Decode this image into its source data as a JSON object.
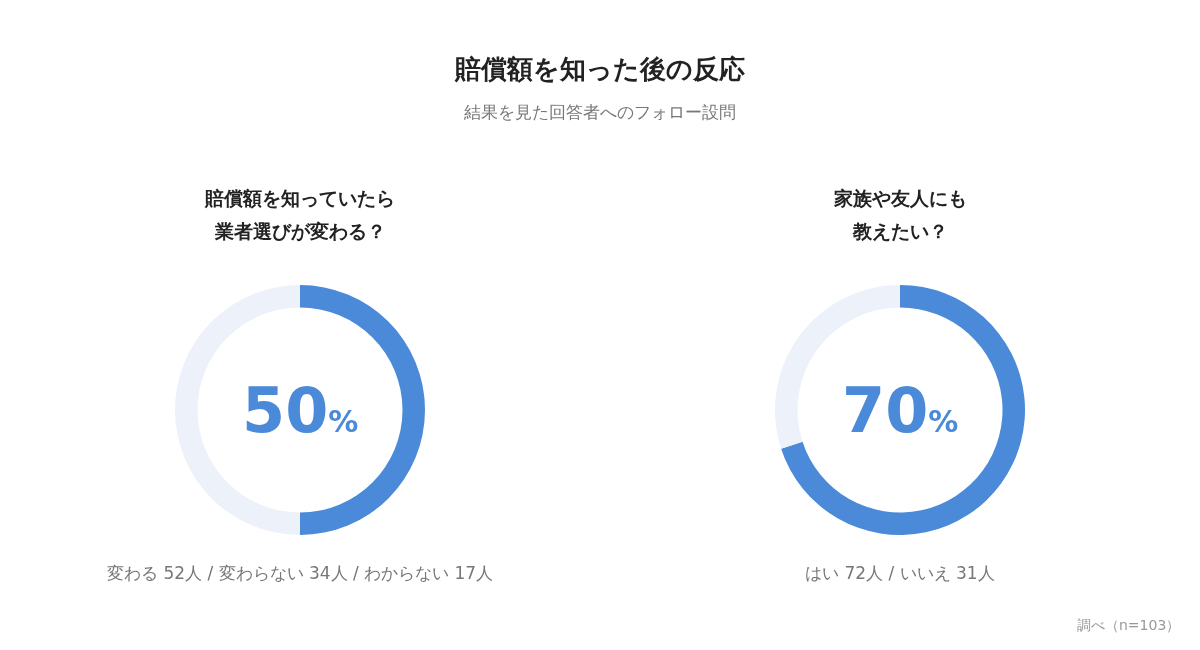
{
  "chart_data": [
    {
      "type": "other",
      "title": "賠償額を知った後の反応",
      "subtitle": "結果を見た回答者へのフォロー設問"
    },
    {
      "type": "donut",
      "title": "賠償額を知っていたら業者選びが変わる？",
      "categories": [
        null,
        null
      ],
      "values": [
        50,
        50
      ],
      "colors": [
        "#4a8ad8",
        "#edf1f9"
      ],
      "annotations": [
        "50%",
        "変わる 52人 / 変わらない 34人 / わからない 17人"
      ]
    },
    {
      "type": "donut",
      "title": "家族や友人にも教えたい？",
      "categories": [
        null,
        null
      ],
      "values": [
        70,
        30
      ],
      "colors": [
        "#4a8ad8",
        "#edf1f9"
      ],
      "annotations": [
        "70%",
        "はい 72人 / いいえ 31人",
        "調べ（n=103）"
      ]
    }
  ]
}
